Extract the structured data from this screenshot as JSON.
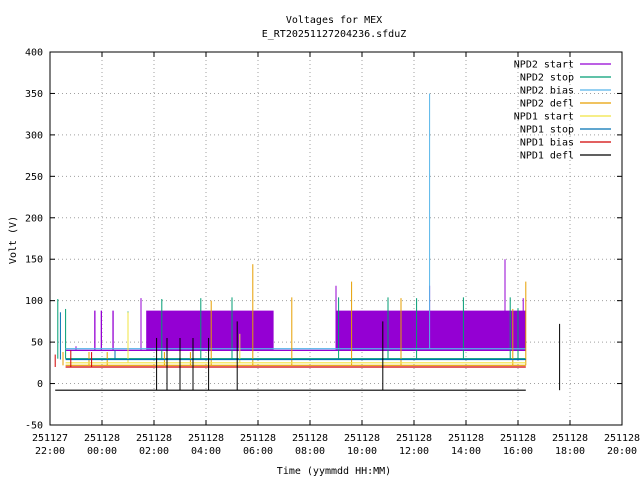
{
  "chart_data": {
    "type": "line",
    "title": "Voltages for MEX",
    "subtitle": "E_RT20251127204236.sfduZ",
    "xlabel": "Time (yymmdd HH:MM)",
    "ylabel": "Volt (V)",
    "ylim": [
      -50,
      400
    ],
    "yticks": [
      "-50",
      "0",
      "50",
      "100",
      "150",
      "200",
      "250",
      "300",
      "350",
      "400"
    ],
    "xlim_hours": [
      22,
      44
    ],
    "xticks": [
      {
        "date": "251127",
        "time": "22:00"
      },
      {
        "date": "251128",
        "time": "00:00"
      },
      {
        "date": "251128",
        "time": "02:00"
      },
      {
        "date": "251128",
        "time": "04:00"
      },
      {
        "date": "251128",
        "time": "06:00"
      },
      {
        "date": "251128",
        "time": "08:00"
      },
      {
        "date": "251128",
        "time": "10:00"
      },
      {
        "date": "251128",
        "time": "12:00"
      },
      {
        "date": "251128",
        "time": "14:00"
      },
      {
        "date": "251128",
        "time": "16:00"
      },
      {
        "date": "251128",
        "time": "18:00"
      },
      {
        "date": "251128",
        "time": "20:00"
      }
    ],
    "grid": true,
    "legend_position": "top-right",
    "series": [
      {
        "name": "NPD2 start",
        "color": "#9400d3",
        "baseline": 40,
        "blocks": [
          [
            23.7,
            23.75,
            40,
            88
          ],
          [
            23.95,
            24.0,
            40,
            88
          ],
          [
            24.4,
            24.45,
            40,
            88
          ],
          [
            25.7,
            30.6,
            40,
            88
          ],
          [
            33.0,
            40.3,
            40,
            88
          ]
        ],
        "spikes": [
          [
            23.0,
            45
          ],
          [
            25.5,
            103
          ],
          [
            33.0,
            118
          ],
          [
            36.6,
            118
          ],
          [
            39.5,
            150
          ],
          [
            40.2,
            103
          ]
        ]
      },
      {
        "name": "NPD2 stop",
        "color": "#009e73",
        "baseline": 30,
        "spikes": [
          [
            22.3,
            102
          ],
          [
            22.6,
            90
          ],
          [
            25.0,
            87
          ],
          [
            26.3,
            102
          ],
          [
            27.8,
            103
          ],
          [
            29.0,
            104
          ],
          [
            33.1,
            104
          ],
          [
            35.0,
            104
          ],
          [
            36.1,
            103
          ],
          [
            37.9,
            104
          ],
          [
            39.7,
            104
          ],
          [
            40.0,
            91
          ]
        ]
      },
      {
        "name": "NPD2 bias",
        "color": "#56b4e9",
        "baseline": 42,
        "spikes": [
          [
            36.6,
            350
          ]
        ]
      },
      {
        "name": "NPD2 defl",
        "color": "#e69f00",
        "baseline": 22,
        "spikes": [
          [
            22.5,
            38
          ],
          [
            23.5,
            38
          ],
          [
            24.2,
            38
          ],
          [
            26.4,
            38
          ],
          [
            27.4,
            38
          ],
          [
            28.2,
            100
          ],
          [
            29.8,
            144
          ],
          [
            31.3,
            104
          ],
          [
            33.6,
            123
          ],
          [
            35.5,
            103
          ],
          [
            39.8,
            90
          ],
          [
            40.3,
            123
          ]
        ]
      },
      {
        "name": "NPD1 start",
        "color": "#f0e442",
        "baseline": 25,
        "spikes": [
          [
            25.0,
            86
          ],
          [
            29.3,
            60
          ]
        ]
      },
      {
        "name": "NPD1 stop",
        "color": "#0072b2",
        "baseline": 29,
        "spikes": [
          [
            22.4,
            86
          ],
          [
            24.5,
            40
          ]
        ]
      },
      {
        "name": "NPD1 bias",
        "color": "#d00000",
        "baseline": 20,
        "spikes": [
          [
            22.2,
            35
          ],
          [
            22.8,
            40
          ],
          [
            23.6,
            38
          ]
        ]
      },
      {
        "name": "NPD1 defl",
        "color": "#000000",
        "baseline": -8,
        "spikes": [
          [
            26.1,
            55
          ],
          [
            26.5,
            55
          ],
          [
            27.0,
            55
          ],
          [
            27.5,
            55
          ],
          [
            28.1,
            55
          ],
          [
            29.2,
            75
          ],
          [
            34.8,
            75
          ],
          [
            41.6,
            72
          ]
        ]
      }
    ]
  }
}
